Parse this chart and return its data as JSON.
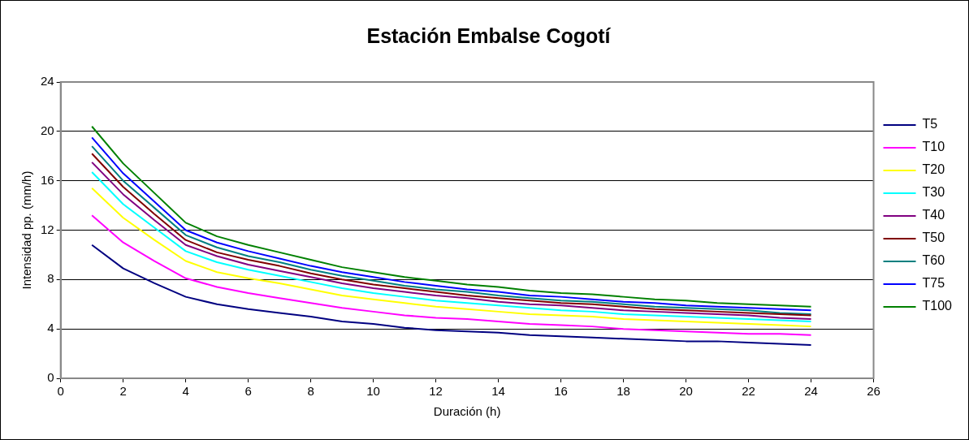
{
  "chart_data": {
    "type": "line",
    "title": "Estación Embalse Cogotí",
    "xlabel": "Duración (h)",
    "ylabel": "Intensidad pp. (mm/h)",
    "x": [
      1,
      2,
      3,
      4,
      5,
      6,
      7,
      8,
      9,
      10,
      11,
      12,
      13,
      14,
      15,
      16,
      17,
      18,
      19,
      20,
      21,
      22,
      23,
      24
    ],
    "xlim": [
      0,
      26
    ],
    "xticks": [
      0,
      2,
      4,
      6,
      8,
      10,
      12,
      14,
      16,
      18,
      20,
      22,
      24,
      26
    ],
    "ylim": [
      0,
      24
    ],
    "yticks": [
      0,
      4,
      8,
      12,
      16,
      20,
      24
    ],
    "grid": "y",
    "legend": "right",
    "marker": "none",
    "line_style": "solid",
    "series": [
      {
        "name": "T5",
        "color": "#000080",
        "values": [
          10.8,
          8.9,
          7.7,
          6.6,
          6.0,
          5.6,
          5.3,
          5.0,
          4.6,
          4.4,
          4.1,
          3.9,
          3.8,
          3.7,
          3.5,
          3.4,
          3.3,
          3.2,
          3.1,
          3.0,
          3.0,
          2.9,
          2.8,
          2.7
        ]
      },
      {
        "name": "T10",
        "color": "#ff00ff",
        "values": [
          13.2,
          11.0,
          9.5,
          8.1,
          7.4,
          6.9,
          6.5,
          6.1,
          5.7,
          5.4,
          5.1,
          4.9,
          4.8,
          4.6,
          4.4,
          4.3,
          4.2,
          4.0,
          3.9,
          3.8,
          3.7,
          3.6,
          3.6,
          3.5
        ]
      },
      {
        "name": "T20",
        "color": "#ffff00",
        "values": [
          15.4,
          13.0,
          11.2,
          9.5,
          8.6,
          8.1,
          7.7,
          7.2,
          6.7,
          6.4,
          6.1,
          5.8,
          5.6,
          5.4,
          5.2,
          5.1,
          5.0,
          4.8,
          4.7,
          4.6,
          4.5,
          4.4,
          4.3,
          4.2
        ]
      },
      {
        "name": "T30",
        "color": "#00ffff",
        "values": [
          16.7,
          14.1,
          12.2,
          10.3,
          9.4,
          8.8,
          8.3,
          7.8,
          7.3,
          6.9,
          6.6,
          6.3,
          6.1,
          5.9,
          5.7,
          5.5,
          5.4,
          5.2,
          5.1,
          5.0,
          4.9,
          4.8,
          4.7,
          4.6
        ]
      },
      {
        "name": "T40",
        "color": "#800080",
        "values": [
          17.5,
          14.9,
          12.8,
          10.8,
          9.9,
          9.2,
          8.7,
          8.2,
          7.7,
          7.3,
          7.0,
          6.7,
          6.5,
          6.2,
          6.0,
          5.9,
          5.7,
          5.5,
          5.4,
          5.3,
          5.2,
          5.1,
          4.9,
          4.8
        ]
      },
      {
        "name": "T50",
        "color": "#800000",
        "values": [
          18.2,
          15.5,
          13.3,
          11.2,
          10.2,
          9.6,
          9.1,
          8.5,
          8.0,
          7.6,
          7.3,
          7.0,
          6.7,
          6.5,
          6.3,
          6.1,
          6.0,
          5.8,
          5.6,
          5.5,
          5.4,
          5.3,
          5.2,
          5.1
        ]
      },
      {
        "name": "T60",
        "color": "#008080",
        "values": [
          18.8,
          16.0,
          13.8,
          11.6,
          10.6,
          9.9,
          9.4,
          8.8,
          8.3,
          7.9,
          7.5,
          7.2,
          7.0,
          6.7,
          6.5,
          6.3,
          6.2,
          6.0,
          5.8,
          5.7,
          5.6,
          5.5,
          5.3,
          5.2
        ]
      },
      {
        "name": "T75",
        "color": "#0000ff",
        "values": [
          19.5,
          16.6,
          14.3,
          12.0,
          11.0,
          10.3,
          9.7,
          9.1,
          8.6,
          8.2,
          7.8,
          7.5,
          7.2,
          7.0,
          6.7,
          6.6,
          6.4,
          6.2,
          6.1,
          5.9,
          5.8,
          5.7,
          5.6,
          5.5
        ]
      },
      {
        "name": "T100",
        "color": "#008000",
        "values": [
          20.4,
          17.4,
          15.0,
          12.6,
          11.5,
          10.8,
          10.2,
          9.6,
          9.0,
          8.6,
          8.2,
          7.9,
          7.6,
          7.4,
          7.1,
          6.9,
          6.8,
          6.6,
          6.4,
          6.3,
          6.1,
          6.0,
          5.9,
          5.8
        ]
      }
    ]
  }
}
